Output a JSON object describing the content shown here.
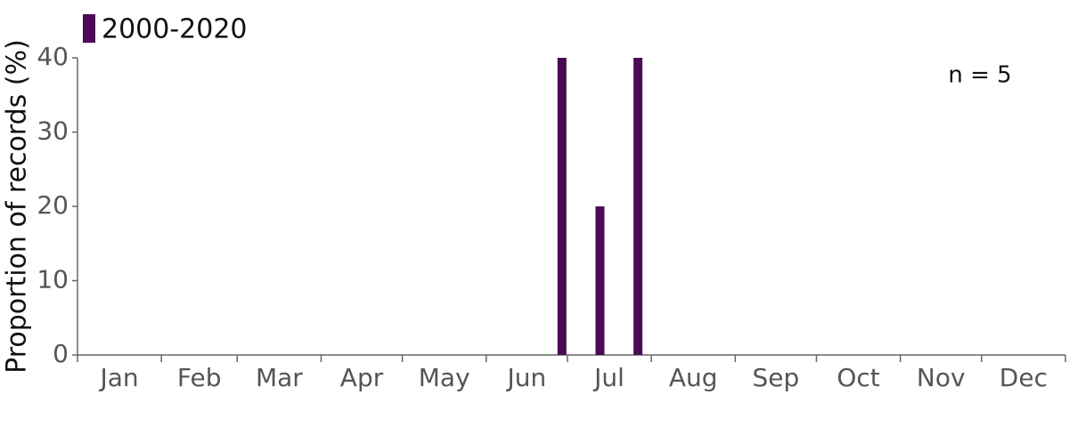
{
  "chart_data": {
    "type": "bar",
    "legend": "2000-2020",
    "annotation": "n = 5",
    "ylabel": "Proportion of records (%)",
    "color": "#4a0a55",
    "x_labels": [
      "Jan",
      "Feb",
      "Mar",
      "Apr",
      "May",
      "Jun",
      "Jul",
      "Aug",
      "Sep",
      "Oct",
      "Nov",
      "Dec"
    ],
    "categories": [
      null,
      null,
      null,
      null,
      null,
      null,
      null,
      null,
      null,
      null,
      null,
      null,
      null,
      null,
      null,
      null,
      null,
      null,
      null,
      null,
      null,
      null,
      null,
      null,
      null,
      null,
      null,
      null,
      null,
      null,
      null,
      null,
      null,
      null,
      null,
      null,
      null,
      null,
      null,
      null,
      null,
      null,
      null,
      null,
      null,
      null,
      null,
      null,
      null,
      null,
      null,
      null
    ],
    "values": [
      0,
      0,
      0,
      0,
      0,
      0,
      0,
      0,
      0,
      0,
      0,
      0,
      0,
      0,
      0,
      0,
      0,
      0,
      0,
      0,
      0,
      0,
      0,
      0,
      0,
      40,
      0,
      20,
      0,
      40,
      0,
      0,
      0,
      0,
      0,
      0,
      0,
      0,
      0,
      0,
      0,
      0,
      0,
      0,
      0,
      0,
      0,
      0,
      0,
      0,
      0,
      0
    ],
    "ylim": [
      0,
      40
    ],
    "yticks": [
      0,
      10,
      20,
      30,
      40
    ],
    "grid": false
  }
}
